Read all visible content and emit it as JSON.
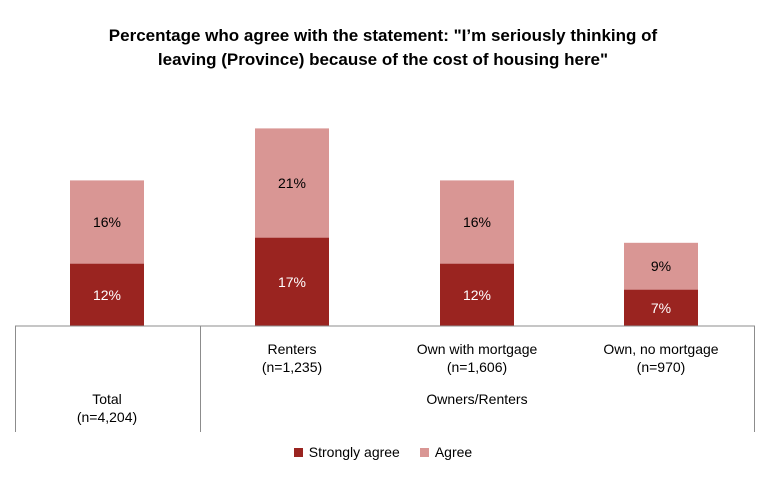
{
  "chart_data": {
    "type": "bar",
    "stacked": true,
    "title_lines": [
      "Percentage who agree with the statement: \"I’m seriously thinking of",
      "leaving (Province) because of the cost of housing here\""
    ],
    "categories": [
      {
        "label": "Total",
        "n": "(n=4,204)"
      },
      {
        "label": "Renters",
        "n": "(n=1,235)"
      },
      {
        "label": "Own with mortgage",
        "n": "(n=1,606)"
      },
      {
        "label": "Own, no mortgage",
        "n": "(n=970)"
      }
    ],
    "group_label": "Owners/Renters",
    "series": [
      {
        "name": "Strongly agree",
        "color": "#9a2420",
        "values": [
          12,
          17,
          12,
          7
        ],
        "labels": [
          "12%",
          "17%",
          "12%",
          "7%"
        ]
      },
      {
        "name": "Agree",
        "color": "#d99694",
        "values": [
          16,
          21,
          16,
          9
        ],
        "labels": [
          "16%",
          "21%",
          "16%",
          "9%"
        ]
      }
    ],
    "legend_position": "bottom",
    "grid": false
  }
}
